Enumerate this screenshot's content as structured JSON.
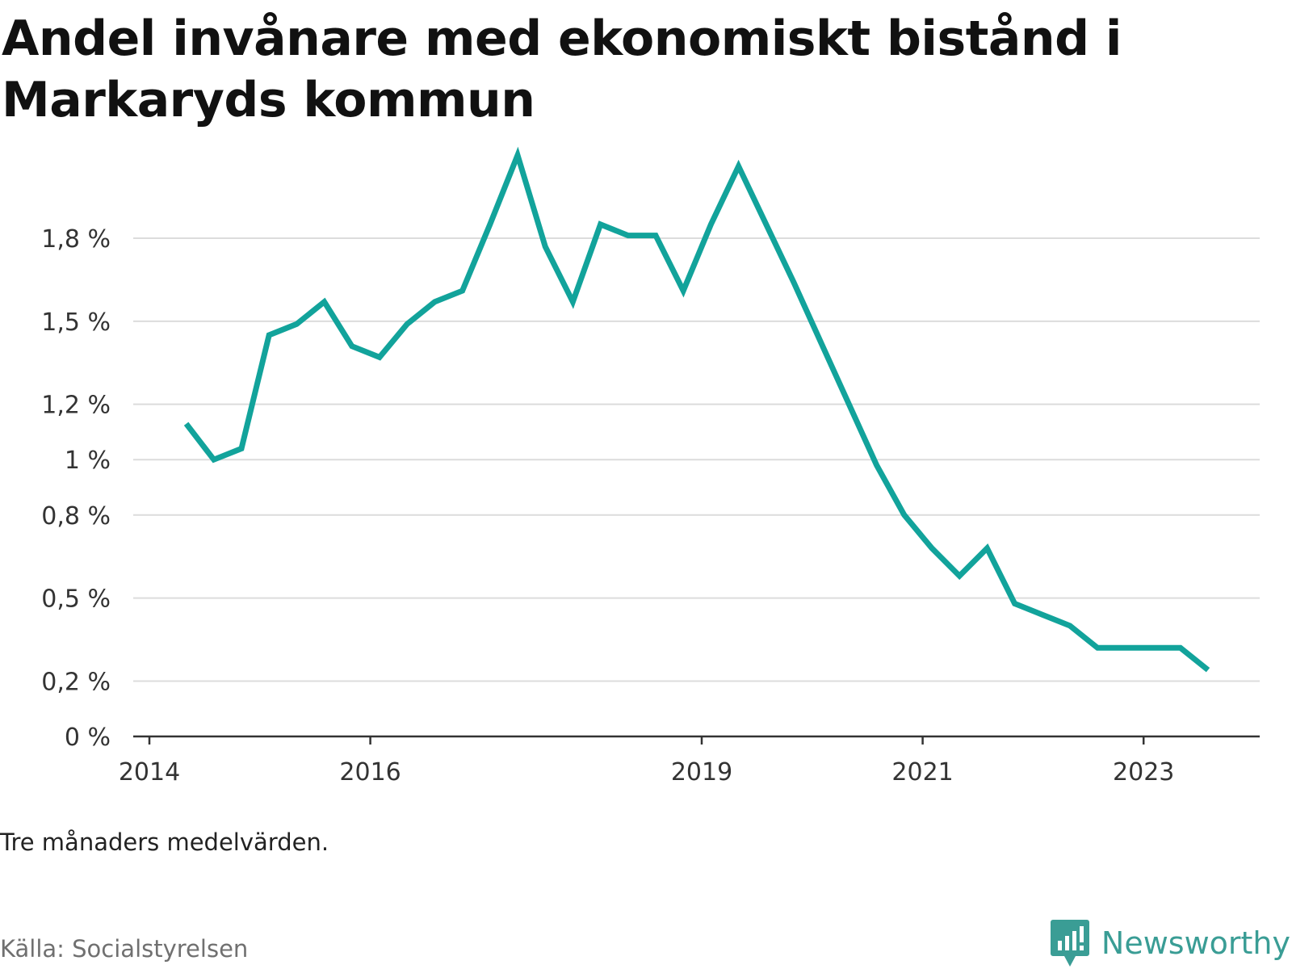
{
  "title": "Andel invånare med ekonomiskt bistånd i Markaryds kommun",
  "note": "Tre månaders medelvärden.",
  "source": "Källa: Socialstyrelsen",
  "brand": {
    "name": "Newsworthy",
    "icon": "newsworthy-chart-icon",
    "color": "#3a9d95"
  },
  "chart_data": {
    "type": "line",
    "title": "Andel invånare med ekonomiskt bistånd i Markaryds kommun",
    "xlabel": "",
    "ylabel": "",
    "x_ticks": [
      "2014",
      "2016",
      "2019",
      "2021",
      "2023"
    ],
    "y_ticks": [
      "0 %",
      "0,2 %",
      "0,5 %",
      "0,8 %",
      "1 %",
      "1,2 %",
      "1,5 %",
      "1,8 %"
    ],
    "ylim": [
      0,
      1.8
    ],
    "xlim": [
      "2014-01",
      "2024-01"
    ],
    "grid": true,
    "line_color": "#12a39b",
    "series": [
      {
        "x": [
          "2014-05",
          "2014-08",
          "2014-11",
          "2015-02",
          "2015-05",
          "2015-08",
          "2015-11",
          "2016-02",
          "2016-05",
          "2016-08",
          "2016-11",
          "2017-02",
          "2017-05",
          "2017-08",
          "2017-11",
          "2018-02",
          "2018-05",
          "2018-08",
          "2018-11",
          "2019-02",
          "2019-05",
          "2019-08",
          "2019-11",
          "2020-02",
          "2020-05",
          "2020-08",
          "2020-11",
          "2021-02",
          "2021-05",
          "2021-08",
          "2021-11",
          "2022-02",
          "2022-05",
          "2022-08",
          "2022-11",
          "2023-02",
          "2023-05",
          "2023-08"
        ],
        "values": [
          1.13,
          1.0,
          1.04,
          1.45,
          1.49,
          1.57,
          1.41,
          1.37,
          1.49,
          1.57,
          1.61,
          1.85,
          2.1,
          1.77,
          1.57,
          1.85,
          1.81,
          1.81,
          1.61,
          1.85,
          2.06,
          1.85,
          1.64,
          1.42,
          1.2,
          0.98,
          0.8,
          0.68,
          0.58,
          0.68,
          0.48,
          0.44,
          0.4,
          0.32,
          0.32,
          0.32,
          0.32,
          0.24
        ]
      }
    ]
  }
}
